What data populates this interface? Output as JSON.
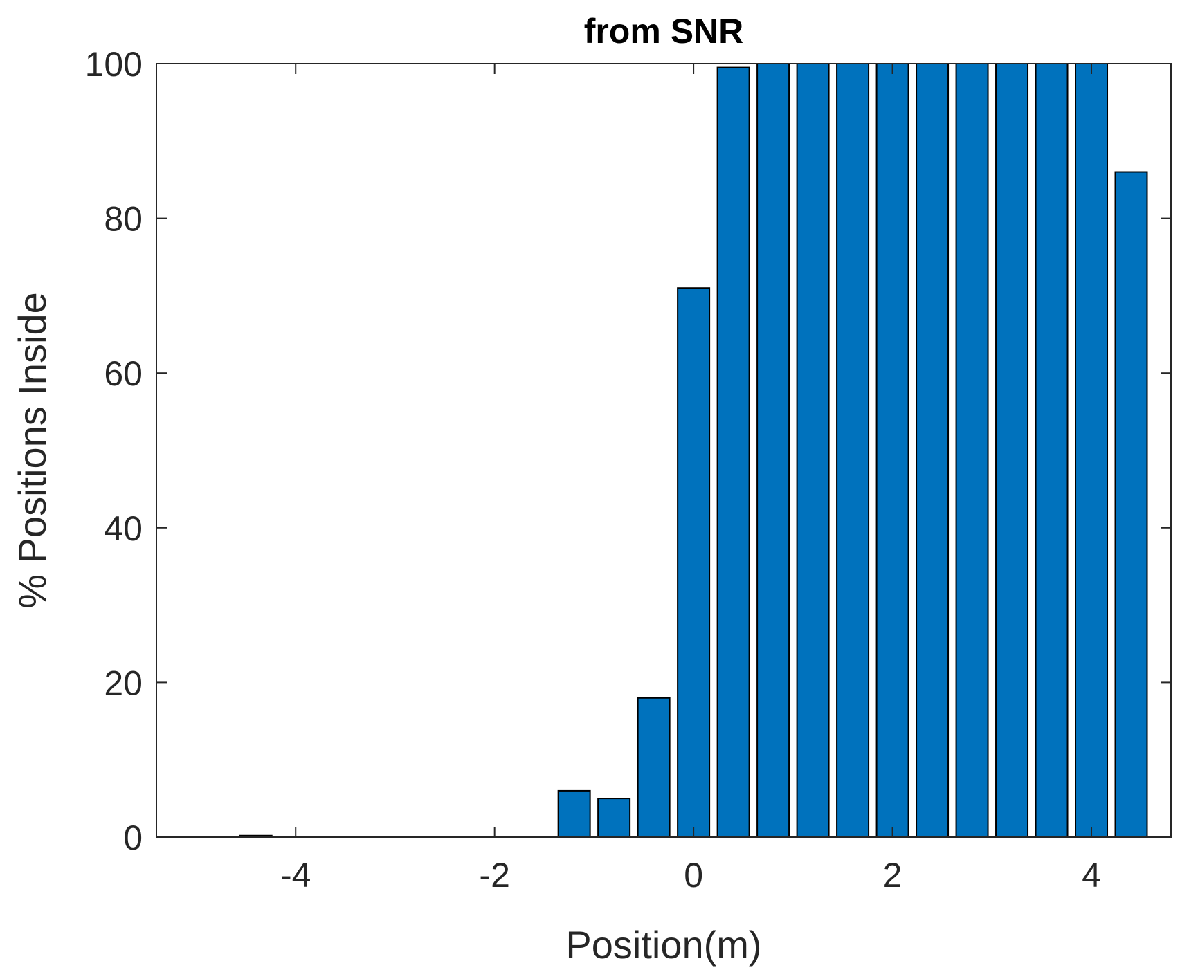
{
  "chart_data": {
    "type": "bar",
    "title": "from SNR",
    "xlabel": "Position(m)",
    "ylabel": "% Positions Inside",
    "xlim": [
      -5.4,
      4.8
    ],
    "ylim": [
      0,
      100
    ],
    "xticks": [
      -4,
      -2,
      0,
      2,
      4
    ],
    "xtick_labels": [
      "-4",
      "-2",
      "0",
      "2",
      "4"
    ],
    "yticks": [
      0,
      20,
      40,
      60,
      80,
      100
    ],
    "ytick_labels": [
      "0",
      "20",
      "40",
      "60",
      "80",
      "100"
    ],
    "grid": false,
    "bar_width": 0.32,
    "bar_color": "#0072BD",
    "bar_edge_color": "#000000",
    "x": [
      -4.4,
      -1.2,
      -0.8,
      -0.4,
      0,
      0.4,
      0.8,
      1.2,
      1.6,
      2.0,
      2.4,
      2.8,
      3.2,
      3.6,
      4.0,
      4.4
    ],
    "values": [
      0.2,
      6,
      5,
      18,
      71,
      99.5,
      100,
      100,
      100,
      100,
      100,
      100,
      100,
      100,
      100,
      86
    ]
  }
}
